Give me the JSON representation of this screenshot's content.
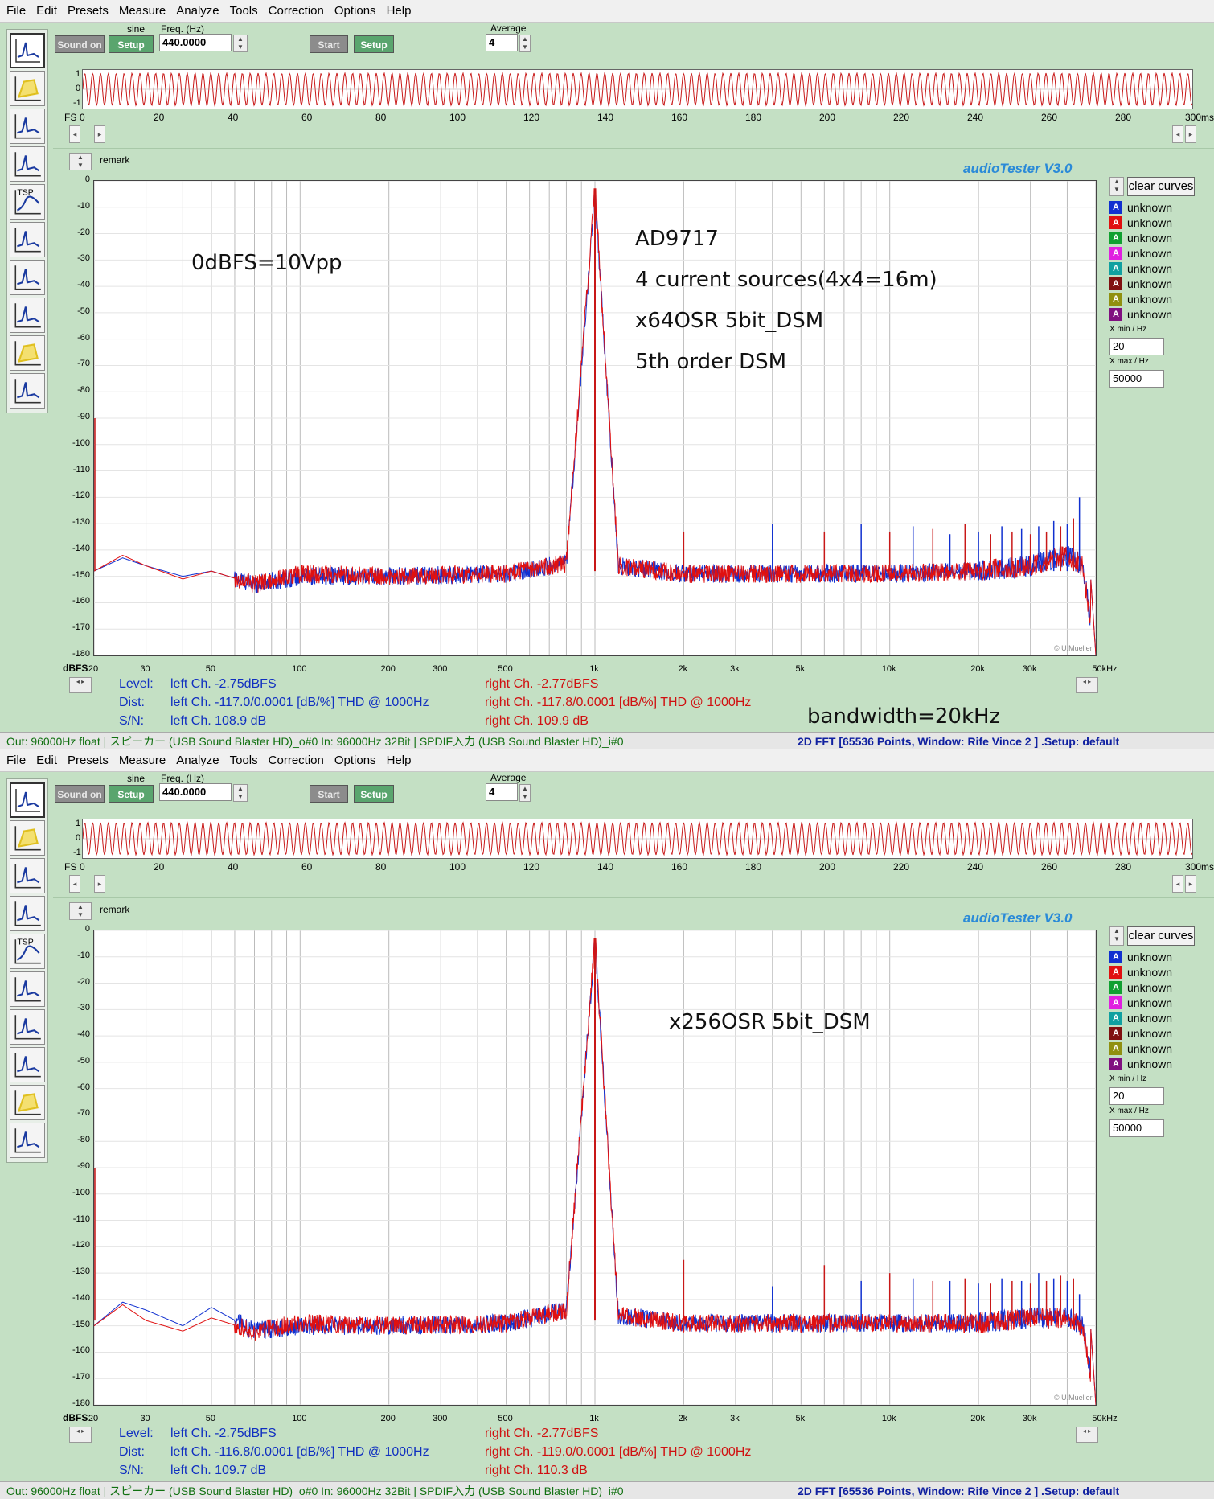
{
  "menu": [
    "File",
    "Edit",
    "Presets",
    "Measure",
    "Analyze",
    "Tools",
    "Correction",
    "Options",
    "Help"
  ],
  "toolbar": {
    "sound_on": "Sound on",
    "setup": "Setup",
    "waveform": "sine",
    "freq_label": "Freq. (Hz)",
    "freq_value": "440.0000",
    "start": "Start",
    "setup2": "Setup",
    "average_label": "Average",
    "average_value": "4"
  },
  "scope": {
    "y_labels": [
      "1",
      "0",
      "-1"
    ],
    "fs_label": "FS",
    "x_labels": [
      "0",
      "20",
      "40",
      "60",
      "80",
      "100",
      "120",
      "140",
      "160",
      "180",
      "200",
      "220",
      "240",
      "260",
      "280",
      "300ms"
    ]
  },
  "remark": "remark",
  "brand": "audioTester  V3.0",
  "plot": {
    "y_labels": [
      "0",
      "-10",
      "-20",
      "-30",
      "-40",
      "-50",
      "-60",
      "-70",
      "-80",
      "-90",
      "-100",
      "-110",
      "-120",
      "-130",
      "-140",
      "-150",
      "-160",
      "-170",
      "-180"
    ],
    "x_labels": [
      "20",
      "30",
      "50",
      "100",
      "200",
      "300",
      "500",
      "1k",
      "2k",
      "3k",
      "5k",
      "10k",
      "20k",
      "30k",
      "50kHz"
    ],
    "x_values": [
      20,
      30,
      50,
      100,
      200,
      300,
      500,
      1000,
      2000,
      3000,
      5000,
      10000,
      20000,
      30000,
      50000
    ],
    "unit_label": "dBFS",
    "copyright": "© U.Mueller"
  },
  "legend": {
    "clear_label": "clear curves",
    "items": [
      {
        "letter": "A",
        "label": "unknown",
        "color": "#1030d0"
      },
      {
        "letter": "A",
        "label": "unknown",
        "color": "#e01010"
      },
      {
        "letter": "A",
        "label": "unknown",
        "color": "#10a030"
      },
      {
        "letter": "A",
        "label": "unknown",
        "color": "#e020e0"
      },
      {
        "letter": "A",
        "label": "unknown",
        "color": "#10a0a0"
      },
      {
        "letter": "A",
        "label": "unknown",
        "color": "#801010"
      },
      {
        "letter": "A",
        "label": "unknown",
        "color": "#909010"
      },
      {
        "letter": "A",
        "label": "unknown",
        "color": "#801080"
      }
    ],
    "xmin_label": "X min / Hz",
    "xmin_value": "20",
    "xmax_label": "X max / Hz",
    "xmax_value": "50000"
  },
  "windows": [
    {
      "annotations": {
        "left": "0dBFS=10Vpp",
        "lines": [
          "AD9717",
          "4 current sources(4x4=16m)",
          "x64OSR  5bit_DSM",
          "5th order DSM"
        ],
        "bandwidth": "bandwidth=20kHz"
      },
      "stats": {
        "level_label": "Level:",
        "dist_label": "Dist:",
        "sn_label": "S/N:",
        "left_level": "left Ch. -2.75dBFS",
        "left_dist": "left Ch. -117.0/0.0001 [dB/%] THD @ 1000Hz",
        "left_sn": "left Ch. 108.9 dB",
        "right_level": "right Ch. -2.77dBFS",
        "right_dist": "right Ch. -117.8/0.0001 [dB/%] THD @ 1000Hz",
        "right_sn": "right Ch. 109.9 dB"
      },
      "status": {
        "left": "Out: 96000Hz float   | スピーカー (USB Sound Blaster HD)_o#0  In: 96000Hz 32Bit   | SPDIF入力 (USB Sound Blaster HD)_i#0",
        "right": "2D FFT [65536 Points, Window: Rife Vince 2 ]  .Setup:  default"
      }
    },
    {
      "annotations": {
        "left": "",
        "lines": [
          "x256OSR 5bit_DSM"
        ],
        "bandwidth": ""
      },
      "stats": {
        "level_label": "Level:",
        "dist_label": "Dist:",
        "sn_label": "S/N:",
        "left_level": "left Ch. -2.75dBFS",
        "left_dist": "left Ch. -116.8/0.0001 [dB/%] THD @ 1000Hz",
        "left_sn": "left Ch. 109.7 dB",
        "right_level": "right Ch. -2.77dBFS",
        "right_dist": "right Ch. -119.0/0.0001 [dB/%] THD @ 1000Hz",
        "right_sn": "right Ch. 110.3 dB"
      },
      "status": {
        "left": "Out: 96000Hz float   | スピーカー (USB Sound Blaster HD)_o#0  In: 96000Hz 32Bit   | SPDIF入力 (USB Sound Blaster HD)_i#0",
        "right": "2D FFT [65536 Points, Window: Rife Vince 2 ]  .Setup:  default"
      }
    }
  ],
  "chart_data": [
    {
      "type": "line",
      "title": "",
      "xlabel": "",
      "ylabel": "dBFS",
      "xscale": "log",
      "xlim": [
        20,
        50000
      ],
      "ylim": [
        -180,
        0
      ],
      "grid": true,
      "series": [
        {
          "color": "#1030d0",
          "x": [
            20,
            25,
            30,
            40,
            50,
            70,
            100,
            200,
            500,
            800,
            1000,
            1200,
            2000,
            5000,
            10000,
            20000,
            30000,
            40000,
            45000,
            50000
          ],
          "y": [
            -148,
            -143,
            -146,
            -150,
            -148,
            -153,
            -150,
            -150,
            -149,
            -145,
            -5,
            -146,
            -149,
            -149,
            -149,
            -148,
            -146,
            -142,
            -146,
            -180
          ]
        },
        {
          "color": "#e01010",
          "x": [
            20,
            25,
            30,
            40,
            50,
            70,
            100,
            200,
            500,
            800,
            1000,
            1200,
            2000,
            5000,
            10000,
            20000,
            30000,
            40000,
            45000,
            50000
          ],
          "y": [
            -148,
            -142,
            -146,
            -151,
            -148,
            -153,
            -149,
            -150,
            -149,
            -145,
            -3,
            -146,
            -149,
            -149,
            -149,
            -148,
            -146,
            -142,
            -146,
            -180
          ]
        }
      ],
      "harmonics_db": [
        -133,
        -130,
        -133,
        -130,
        -133,
        -131,
        -132,
        -134,
        -130,
        -133,
        -134,
        -131,
        -133,
        -132,
        -134,
        -131,
        -133,
        -129,
        -131,
        -130,
        -128,
        -120
      ]
    },
    {
      "type": "line",
      "title": "",
      "xlabel": "",
      "ylabel": "dBFS",
      "xscale": "log",
      "xlim": [
        20,
        50000
      ],
      "ylim": [
        -180,
        0
      ],
      "grid": true,
      "series": [
        {
          "color": "#1030d0",
          "x": [
            20,
            25,
            30,
            40,
            50,
            70,
            100,
            200,
            500,
            800,
            1000,
            1200,
            2000,
            5000,
            10000,
            20000,
            30000,
            40000,
            45000,
            50000
          ],
          "y": [
            -150,
            -141,
            -144,
            -150,
            -143,
            -152,
            -150,
            -150,
            -149,
            -144,
            -4,
            -146,
            -149,
            -149,
            -149,
            -149,
            -147,
            -147,
            -150,
            -180
          ]
        },
        {
          "color": "#e01010",
          "x": [
            20,
            25,
            30,
            40,
            50,
            70,
            100,
            200,
            500,
            800,
            1000,
            1200,
            2000,
            5000,
            10000,
            20000,
            30000,
            40000,
            45000,
            50000
          ],
          "y": [
            -150,
            -142,
            -148,
            -152,
            -147,
            -152,
            -149,
            -150,
            -149,
            -144,
            -3,
            -146,
            -149,
            -149,
            -149,
            -149,
            -147,
            -147,
            -150,
            -180
          ]
        }
      ],
      "harmonics_db": [
        -125,
        -135,
        -127,
        -133,
        -130,
        -132,
        -133,
        -133,
        -132,
        -134,
        -134,
        -132,
        -133,
        -133,
        -134,
        -130,
        -133,
        -132,
        -131,
        -133,
        -132,
        -138
      ]
    }
  ]
}
